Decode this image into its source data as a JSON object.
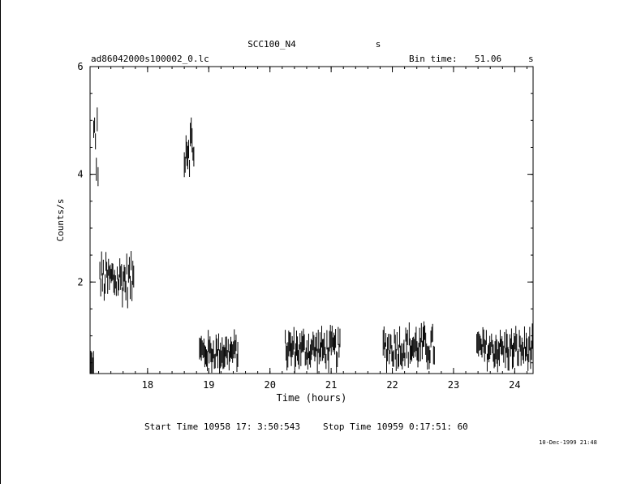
{
  "header": {
    "title": "SCC100_N4",
    "title_unit": "s",
    "filename": "ad86042000s100002_0.lc",
    "bin_label": "Bin time:",
    "bin_value": "51.06",
    "bin_unit": "s"
  },
  "footer": {
    "start_time": "Start Time 10958 17: 3:50:543",
    "stop_time": "Stop Time 10959  0:17:51: 60",
    "timestamp": "10-Dec-1999 21:48"
  },
  "chart_data": {
    "type": "scatter",
    "xlabel": "Time (hours)",
    "ylabel": "Counts/s",
    "xlim": [
      17.06,
      24.3
    ],
    "ylim": [
      0.3,
      6.0
    ],
    "x_ticks": [
      18,
      19,
      20,
      21,
      22,
      23,
      24
    ],
    "y_ticks": [
      2,
      4,
      6
    ],
    "grid": false,
    "segments": [
      {
        "x_start": 17.06,
        "x_end": 17.12,
        "y_mean": 0.45,
        "spread": 0.12
      },
      {
        "x_start": 17.12,
        "x_end": 17.2,
        "y_mean": 4.5,
        "spread": 0.7
      },
      {
        "x_start": 17.22,
        "x_end": 17.78,
        "y_mean": 2.05,
        "spread": 0.35
      },
      {
        "x_start": 18.6,
        "x_end": 18.76,
        "y_mean": 4.55,
        "spread": 0.45
      },
      {
        "x_start": 18.85,
        "x_end": 19.48,
        "y_mean": 0.7,
        "spread": 0.22
      },
      {
        "x_start": 20.25,
        "x_end": 21.15,
        "y_mean": 0.75,
        "spread": 0.25
      },
      {
        "x_start": 21.85,
        "x_end": 22.7,
        "y_mean": 0.8,
        "spread": 0.28
      },
      {
        "x_start": 23.38,
        "x_end": 24.3,
        "y_mean": 0.75,
        "spread": 0.25
      }
    ]
  }
}
